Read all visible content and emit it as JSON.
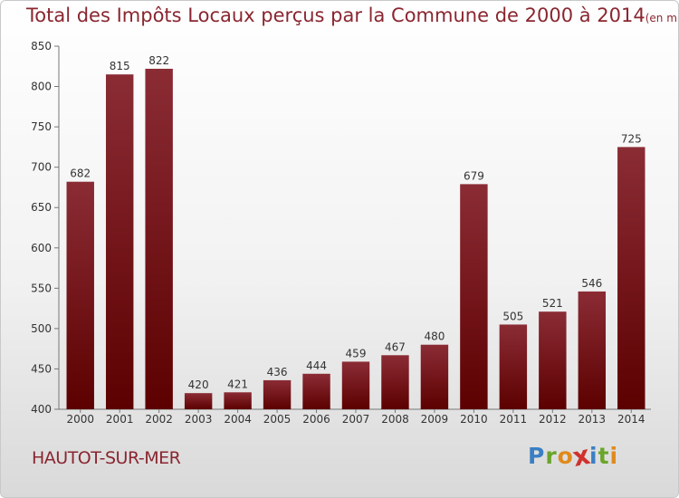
{
  "title": "Total des Impôts Locaux perçus par la Commune de 2000 à 2014",
  "unit_note": "(en milliers d'€)",
  "commune": "HAUTOT-SUR-MER",
  "logo": {
    "text": "Proxiti",
    "letters": [
      "P",
      "r",
      "o",
      "x",
      "i",
      "t",
      "i"
    ],
    "colors": [
      "#3a7fc4",
      "#6aa52a",
      "#e08a1c",
      "#d0312d",
      "#3a7fc4",
      "#6aa52a",
      "#e08a1c"
    ]
  },
  "chart_data": {
    "type": "bar",
    "categories": [
      "2000",
      "2001",
      "2002",
      "2003",
      "2004",
      "2005",
      "2006",
      "2007",
      "2008",
      "2009",
      "2010",
      "2011",
      "2012",
      "2013",
      "2014"
    ],
    "values": [
      682,
      815,
      822,
      420,
      421,
      436,
      444,
      459,
      467,
      480,
      679,
      505,
      521,
      546,
      725
    ],
    "yticks": [
      400,
      450,
      500,
      550,
      600,
      650,
      700,
      750,
      800,
      850
    ],
    "ylim": [
      400,
      850
    ],
    "grid": false,
    "bar_color_top": "#8b2c35",
    "bar_color_bottom": "#5c0000"
  }
}
